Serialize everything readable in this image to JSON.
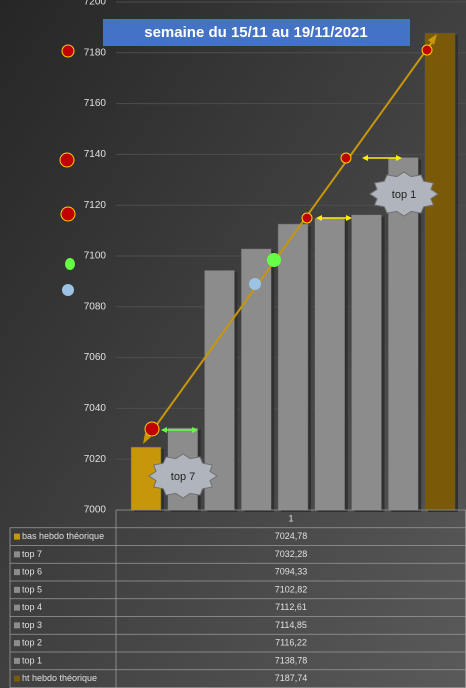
{
  "chart_data": {
    "type": "bar",
    "title": "semaine du 15/11 au 19/11/2021",
    "categories": [
      "1"
    ],
    "series": [
      {
        "name": "bas hebdo théorique",
        "color": "#c8960a",
        "values": [
          7024.78
        ],
        "value_labels": [
          "7024,78"
        ]
      },
      {
        "name": "top 7",
        "color": "#8c8c8c",
        "values": [
          7032.28
        ],
        "value_labels": [
          "7032,28"
        ]
      },
      {
        "name": "top 6",
        "color": "#8c8c8c",
        "values": [
          7094.33
        ],
        "value_labels": [
          "7094,33"
        ]
      },
      {
        "name": "top 5",
        "color": "#8c8c8c",
        "values": [
          7102.82
        ],
        "value_labels": [
          "7102,82"
        ]
      },
      {
        "name": "top 4",
        "color": "#8c8c8c",
        "values": [
          7112.61
        ],
        "value_labels": [
          "7112,61"
        ]
      },
      {
        "name": "top 3",
        "color": "#8c8c8c",
        "values": [
          7114.85
        ],
        "value_labels": [
          "7114,85"
        ]
      },
      {
        "name": "top 2",
        "color": "#8c8c8c",
        "values": [
          7116.22
        ],
        "value_labels": [
          "7116,22"
        ]
      },
      {
        "name": "top 1",
        "color": "#8c8c8c",
        "values": [
          7138.78
        ],
        "value_labels": [
          "7138,78"
        ]
      },
      {
        "name": "ht hebdo théorique",
        "color": "#7a5a08",
        "values": [
          7187.74
        ],
        "value_labels": [
          "7187,74"
        ]
      }
    ],
    "ylim": [
      7000,
      7200
    ],
    "yticks": [
      7000,
      7020,
      7040,
      7060,
      7080,
      7100,
      7120,
      7140,
      7160,
      7180,
      7200
    ],
    "grid": true,
    "annotations": [
      "top 7",
      "top 1"
    ]
  }
}
